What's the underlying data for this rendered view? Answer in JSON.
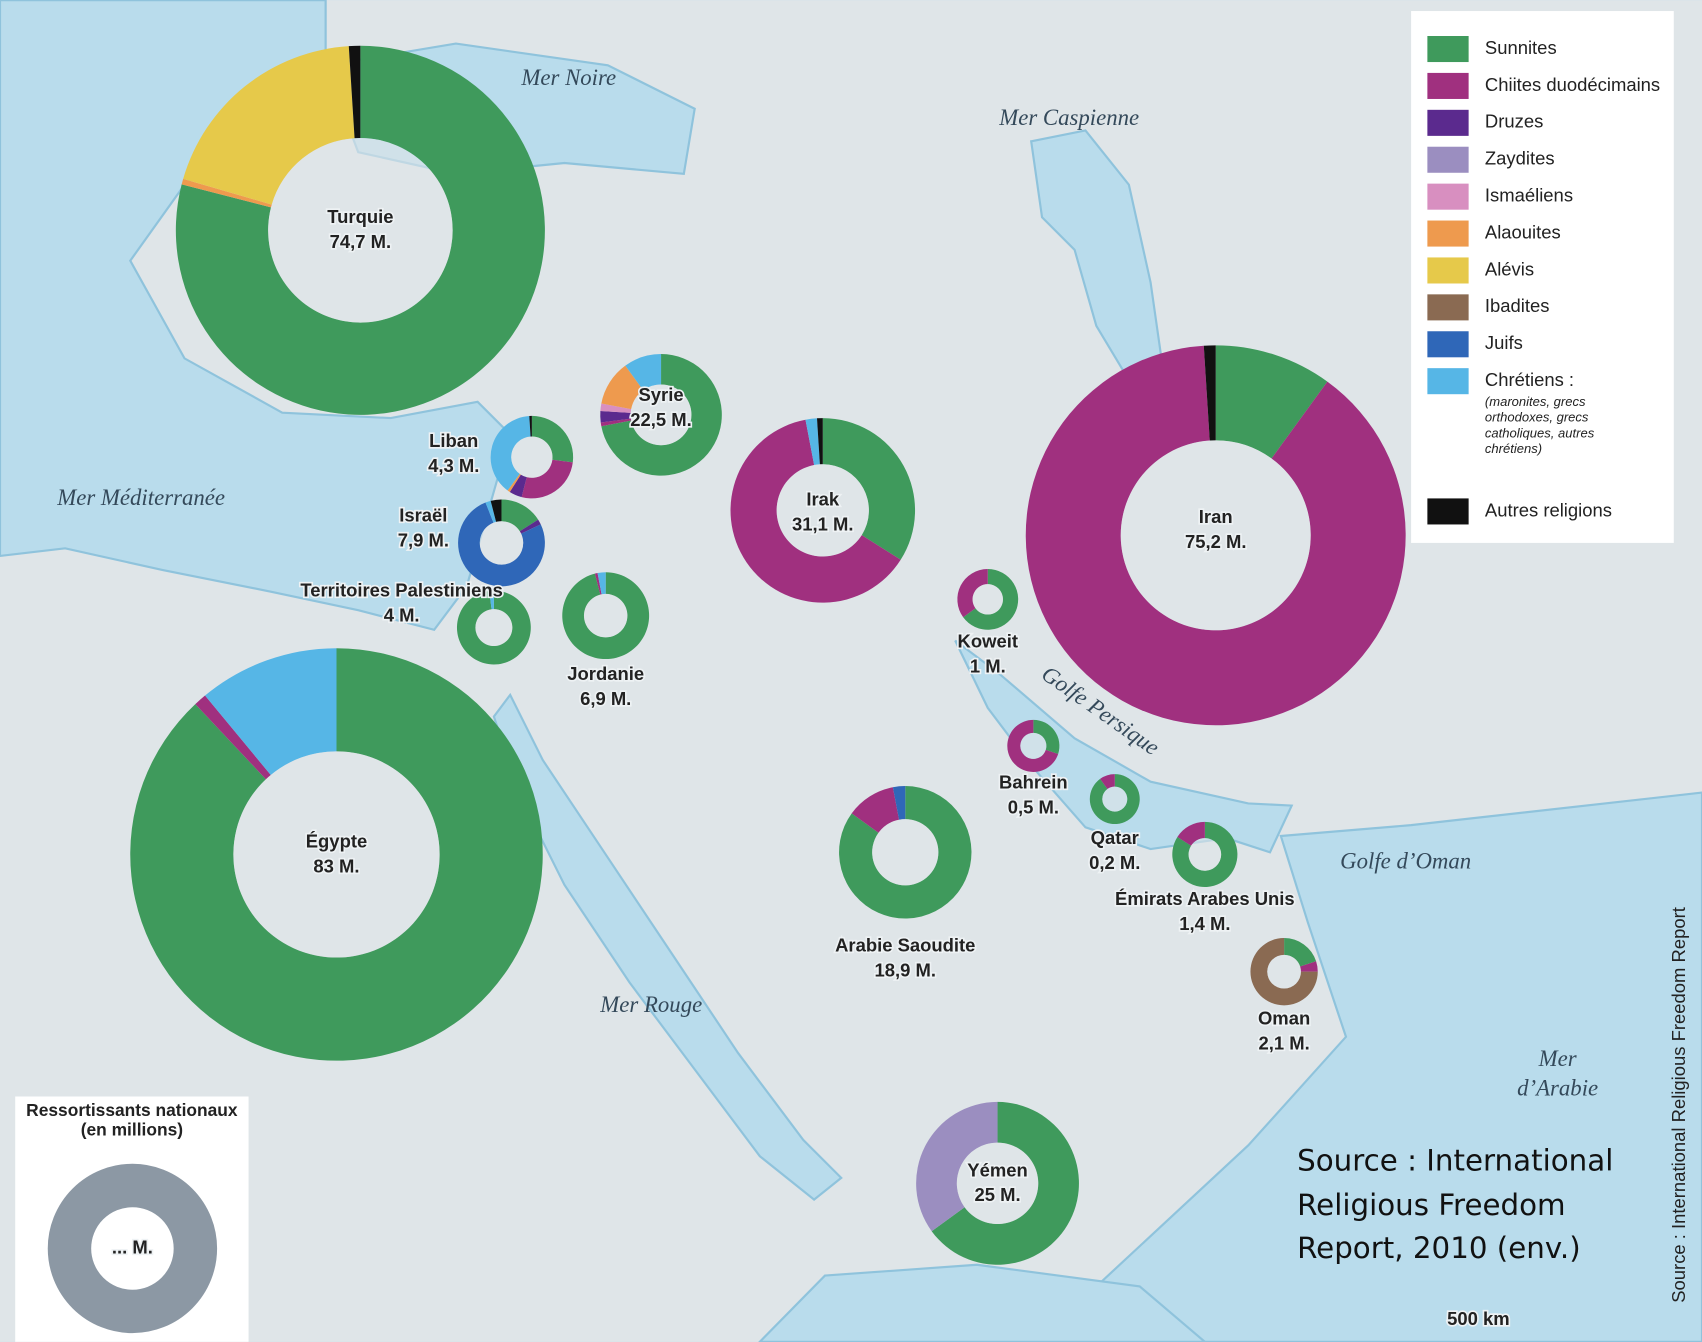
{
  "map": {
    "seas": [
      "Mer Noire",
      "Mer Caspienne",
      "Mer Méditerranée",
      "Golfe Persique",
      "Mer Rouge",
      "Golfe d’Oman",
      "Mer d’Arabie"
    ],
    "legend": {
      "religions": [
        {
          "name": "Sunnites",
          "color": "#3f9a5c"
        },
        {
          "name": "Chiites duodécimains",
          "color": "#a0307f"
        },
        {
          "name": "Druzes",
          "color": "#5b2a8e"
        },
        {
          "name": "Zaydites",
          "color": "#9b8ec0"
        },
        {
          "name": "Ismaéliens",
          "color": "#d88fc0"
        },
        {
          "name": "Alaouites",
          "color": "#ee9a4e"
        },
        {
          "name": "Alévis",
          "color": "#e6c94a"
        },
        {
          "name": "Ibadites",
          "color": "#8a6a52"
        },
        {
          "name": "Juifs",
          "color": "#2f67b8"
        },
        {
          "name": "Chrétiens :",
          "color": "#56b6e6",
          "note": "(maronites, grecs orthodoxes, grecs catholiques, autres chrétiens)"
        },
        {
          "name": "Autres religions",
          "color": "#111111"
        }
      ]
    },
    "size_key": {
      "title": "Ressortissants nationaux (en millions)",
      "label": "... M."
    },
    "countries": [
      {
        "name": "Turquie",
        "population": "74,7 M.",
        "shares": [
          79,
          0,
          0,
          0,
          0,
          0.5,
          19.5,
          0,
          0,
          0,
          1
        ]
      },
      {
        "name": "Syrie",
        "population": "22,5 M.",
        "shares": [
          72,
          1,
          3,
          0,
          2,
          12,
          0,
          0,
          0,
          10,
          0
        ]
      },
      {
        "name": "Liban",
        "population": "4,3 M.",
        "shares": [
          27,
          27,
          5,
          0,
          0,
          1,
          0,
          0,
          0,
          39,
          1
        ]
      },
      {
        "name": "Israël",
        "population": "7,9 M.",
        "shares": [
          16,
          0,
          2,
          0,
          0,
          0,
          0,
          0,
          76,
          2,
          4
        ]
      },
      {
        "name": "Territoires Palestiniens",
        "population": "4 M.",
        "shares": [
          98,
          0,
          0,
          0,
          0,
          0,
          0,
          0,
          0,
          2,
          0
        ]
      },
      {
        "name": "Jordanie",
        "population": "6,9 M.",
        "shares": [
          96,
          1,
          0,
          0,
          0,
          0,
          0,
          0,
          0,
          3,
          0
        ]
      },
      {
        "name": "Irak",
        "population": "31,1 M.",
        "shares": [
          34,
          63,
          0,
          0,
          0,
          0,
          0,
          0,
          0,
          2,
          1
        ]
      },
      {
        "name": "Iran",
        "population": "75,2 M.",
        "shares": [
          10,
          89,
          0,
          0,
          0,
          0,
          0,
          0,
          0,
          0,
          1
        ]
      },
      {
        "name": "Koweit",
        "population": "1 M.",
        "shares": [
          65,
          35,
          0,
          0,
          0,
          0,
          0,
          0,
          0,
          0,
          0
        ]
      },
      {
        "name": "Bahrein",
        "population": "0,5 M.",
        "shares": [
          30,
          70,
          0,
          0,
          0,
          0,
          0,
          0,
          0,
          0,
          0
        ]
      },
      {
        "name": "Qatar",
        "population": "0,2 M.",
        "shares": [
          90,
          10,
          0,
          0,
          0,
          0,
          0,
          0,
          0,
          0,
          0
        ]
      },
      {
        "name": "Émirats Arabes Unis",
        "population": "1,4 M.",
        "shares": [
          84,
          16,
          0,
          0,
          0,
          0,
          0,
          0,
          0,
          0,
          0
        ]
      },
      {
        "name": "Oman",
        "population": "2,1 M.",
        "shares": [
          20,
          5,
          0,
          0,
          0,
          0,
          0,
          75,
          0,
          0,
          0
        ]
      },
      {
        "name": "Arabie Saoudite",
        "population": "18,9 M.",
        "shares": [
          85,
          12,
          0,
          0,
          0,
          0,
          0,
          0,
          3,
          0,
          0
        ]
      },
      {
        "name": "Yémen",
        "population": "25 M.",
        "shares": [
          65,
          0,
          0,
          35,
          0,
          0,
          0,
          0,
          0,
          0,
          0
        ]
      },
      {
        "name": "Égypte",
        "population": "83 M.",
        "shares": [
          88,
          1,
          0,
          0,
          0,
          0,
          0,
          0,
          0,
          11,
          0
        ]
      }
    ],
    "source": "Source : International Religious Freedom Report, 2010 (env.)",
    "side_source": "Source : International Religious Freedom Report",
    "scale": "500 km"
  }
}
